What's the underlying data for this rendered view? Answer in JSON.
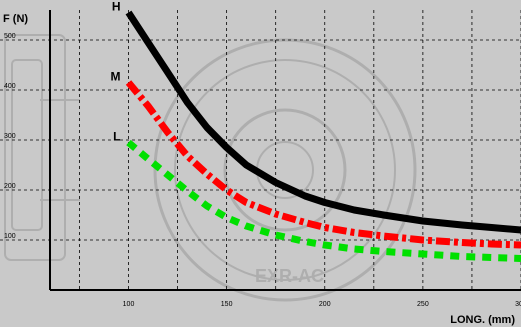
{
  "chart_data": {
    "type": "line",
    "ylabel": "F (N)",
    "xlabel": "LONG. (mm)",
    "xlim": [
      60,
      300
    ],
    "ylim": [
      0,
      560
    ],
    "xticks": [
      100,
      150,
      200,
      250,
      300
    ],
    "yticks": [
      100,
      200,
      300,
      400,
      500
    ],
    "grid": true,
    "series": [
      {
        "name": "H",
        "color": "#000000",
        "dash": "solid",
        "x": [
          100,
          110,
          120,
          130,
          140,
          150,
          160,
          175,
          190,
          200,
          215,
          230,
          250,
          270,
          285,
          300
        ],
        "y": [
          555,
          495,
          435,
          375,
          325,
          285,
          250,
          215,
          188,
          175,
          160,
          150,
          138,
          130,
          125,
          120
        ]
      },
      {
        "name": "M",
        "color": "#ff0000",
        "dash": "dashdot",
        "x": [
          100,
          110,
          120,
          130,
          140,
          150,
          160,
          175,
          190,
          200,
          215,
          230,
          250,
          270,
          285,
          300
        ],
        "y": [
          415,
          368,
          315,
          268,
          232,
          200,
          175,
          152,
          135,
          125,
          115,
          108,
          100,
          95,
          92,
          90
        ]
      },
      {
        "name": "L",
        "color": "#00e000",
        "dash": "dashed",
        "x": [
          100,
          110,
          120,
          130,
          140,
          150,
          160,
          175,
          190,
          200,
          215,
          230,
          250,
          270,
          285,
          300
        ],
        "y": [
          295,
          262,
          230,
          198,
          168,
          145,
          128,
          110,
          97,
          90,
          82,
          77,
          72,
          67,
          65,
          63
        ]
      }
    ]
  },
  "watermark": {
    "text": "EXR-AC"
  }
}
